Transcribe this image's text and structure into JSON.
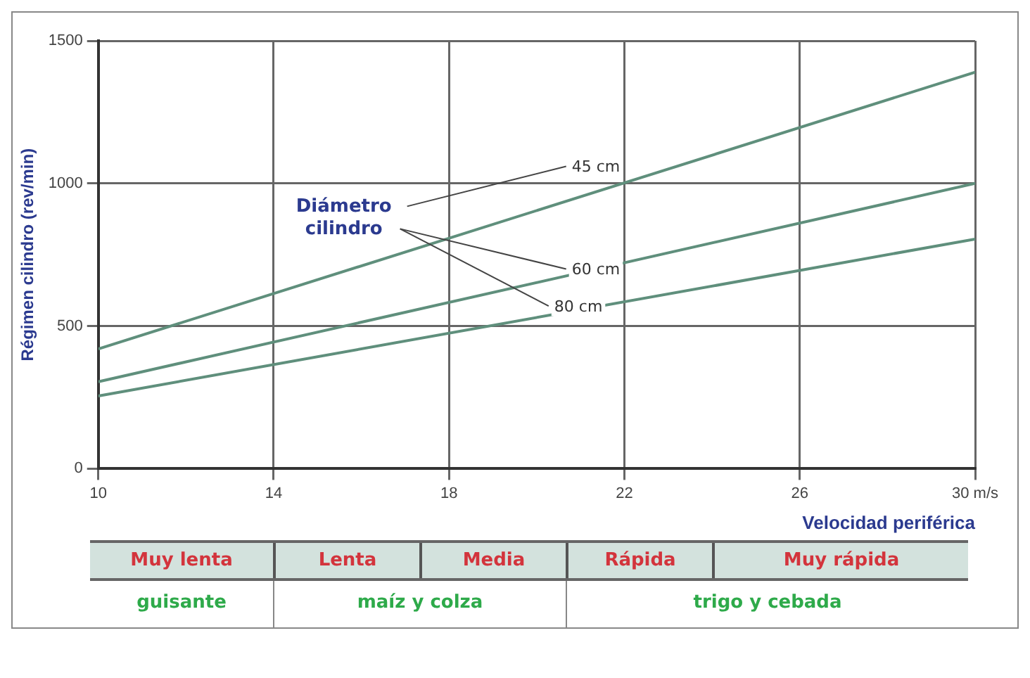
{
  "chart_data": {
    "type": "line",
    "xlabel": "Velocidad periférica",
    "ylabel": "Régimen cilindro (rev/min)",
    "legend_title": "Diámetro cilindro",
    "x": [
      10,
      30
    ],
    "series": [
      {
        "name": "45 cm",
        "color": "#5f8f7c",
        "values": [
          420,
          1390
        ]
      },
      {
        "name": "60 cm",
        "color": "#5f8f7c",
        "values": [
          305,
          1000
        ]
      },
      {
        "name": "80 cm",
        "color": "#5f8f7c",
        "values": [
          255,
          805
        ]
      }
    ],
    "xlim": [
      10,
      30
    ],
    "xticks": [
      10,
      14,
      18,
      22,
      26,
      {
        "value": 30,
        "label": "30 m/s"
      }
    ],
    "ylim": [
      0,
      1500
    ],
    "yticks": [
      0,
      500,
      1000,
      1500
    ],
    "grid": true,
    "marker": "none",
    "line_style": "solid",
    "annotations": [
      "Muy lenta",
      "Lenta",
      "Media",
      "Rápida",
      "Muy rápida",
      "guisante",
      "maíz y colza",
      "trigo y cebada"
    ]
  }
}
